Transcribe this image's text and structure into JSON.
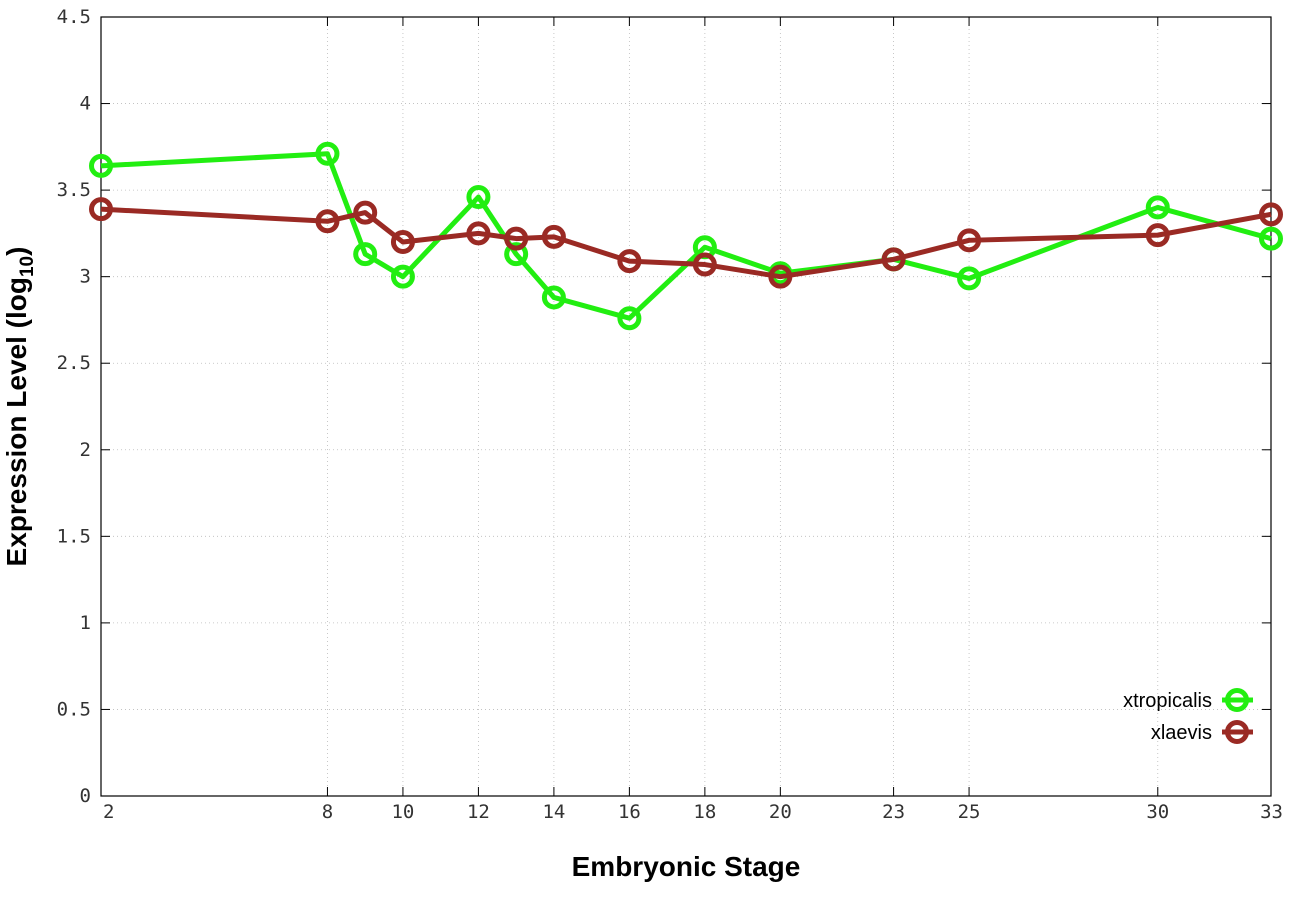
{
  "chart_data": {
    "type": "line",
    "title": "",
    "xlabel": "Embryonic Stage",
    "ylabel_main": "Expression Level (log",
    "ylabel_sub": "10",
    "ylabel_close": ")",
    "xlim": [
      2,
      33
    ],
    "ylim": [
      0,
      4.5
    ],
    "grid": true,
    "legend_position": "bottom-right",
    "x_ticks": [
      2,
      8,
      10,
      12,
      14,
      16,
      18,
      20,
      23,
      25,
      30,
      33
    ],
    "x_tick_labels": [
      "2",
      "8",
      "10",
      "12",
      "14",
      "16",
      "18",
      "20",
      "23",
      "25",
      "30",
      "33"
    ],
    "y_ticks": [
      0,
      0.5,
      1,
      1.5,
      2,
      2.5,
      3,
      3.5,
      4,
      4.5
    ],
    "y_tick_labels": [
      "0",
      "0.5",
      "1",
      "1.5",
      "2",
      "2.5",
      "3",
      "3.5",
      "4",
      "4.5"
    ],
    "series": [
      {
        "name": "xtropicalis",
        "color": "#22ee11",
        "x": [
          2,
          8,
          9,
          10,
          12,
          13,
          14,
          16,
          18,
          20,
          23,
          25,
          30,
          33
        ],
        "y": [
          3.64,
          3.71,
          3.13,
          3.0,
          3.46,
          3.13,
          2.88,
          2.76,
          3.17,
          3.02,
          3.1,
          2.99,
          3.4,
          3.22
        ]
      },
      {
        "name": "xlaevis",
        "color": "#9a2a24",
        "x": [
          2,
          8,
          9,
          10,
          12,
          13,
          14,
          16,
          18,
          20,
          23,
          25,
          30,
          33
        ],
        "y": [
          3.39,
          3.32,
          3.37,
          3.2,
          3.25,
          3.22,
          3.23,
          3.09,
          3.07,
          3.0,
          3.1,
          3.21,
          3.24,
          3.36
        ]
      }
    ]
  }
}
